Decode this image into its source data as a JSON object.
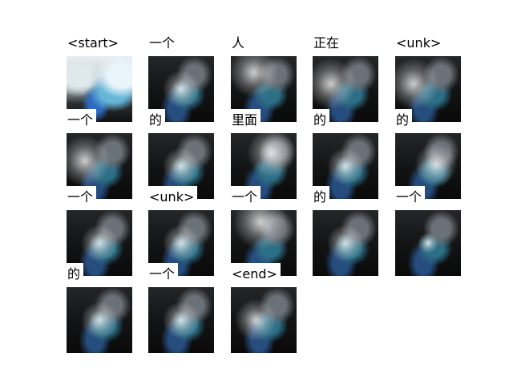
{
  "tokens": [
    {
      "label": "<start>",
      "type": "original"
    },
    {
      "label": "一个",
      "type": "attention",
      "focus": "center"
    },
    {
      "label": "人",
      "type": "attention",
      "focus": "upper-left"
    },
    {
      "label": "正在",
      "type": "attention",
      "focus": "left"
    },
    {
      "label": "<unk>",
      "type": "attention",
      "focus": "left"
    },
    {
      "label": "一个",
      "type": "attention",
      "focus": "left"
    },
    {
      "label": "的",
      "type": "attention",
      "focus": "center"
    },
    {
      "label": "里面",
      "type": "attention",
      "focus": "upper-right"
    },
    {
      "label": "的",
      "type": "attention",
      "focus": "center"
    },
    {
      "label": "的",
      "type": "attention",
      "focus": "center-right"
    },
    {
      "label": "一个",
      "type": "attention",
      "focus": "center"
    },
    {
      "label": "<unk>",
      "type": "attention",
      "focus": "center"
    },
    {
      "label": "一个",
      "type": "attention",
      "focus": "top"
    },
    {
      "label": "的",
      "type": "attention",
      "focus": "center"
    },
    {
      "label": "一个",
      "type": "attention",
      "focus": "faint"
    },
    {
      "label": "的",
      "type": "attention",
      "focus": "center"
    },
    {
      "label": "一个",
      "type": "attention",
      "focus": "center"
    },
    {
      "label": "<end>",
      "type": "attention",
      "focus": "center-left"
    }
  ]
}
